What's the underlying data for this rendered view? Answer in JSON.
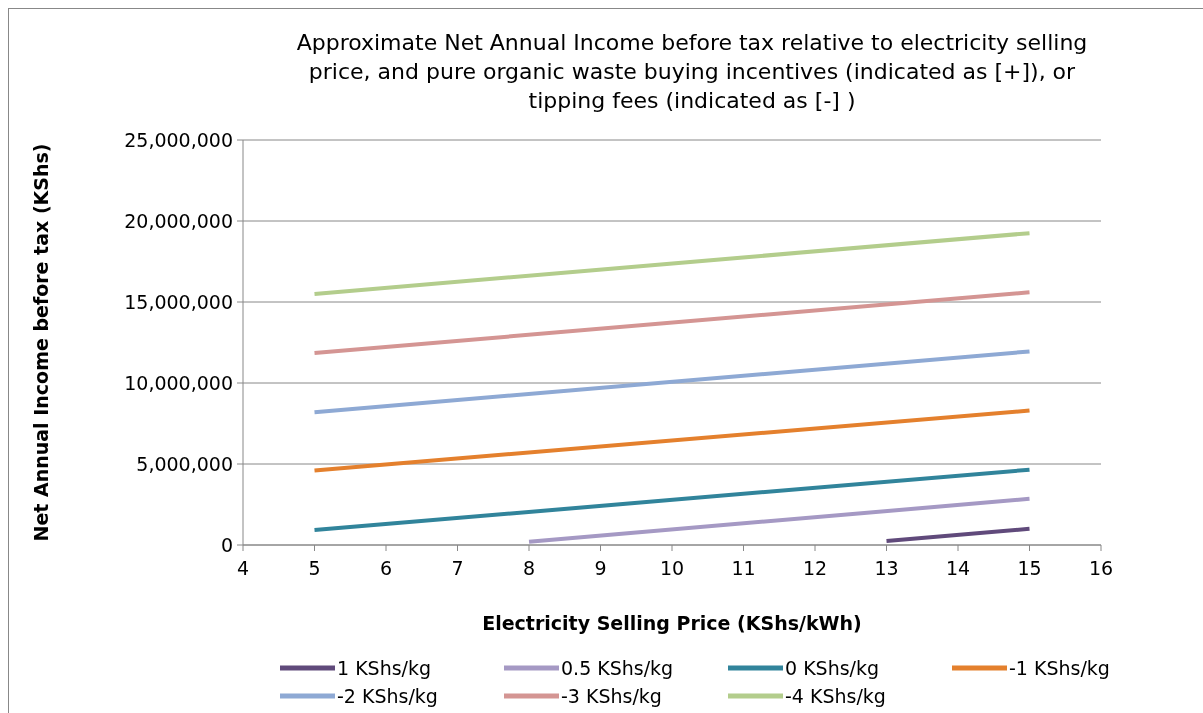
{
  "chart_data": {
    "type": "line",
    "title": "Approximate Net Annual Income before tax relative to electricity selling price, and pure organic waste buying incentives (indicated as [+]), or tipping fees (indicated as [-] )",
    "xlabel": "Electricity Selling Price (KShs/kWh)",
    "ylabel": "Net Annual Income before tax (KShs)",
    "xlim": [
      4,
      16
    ],
    "xticks": [
      4,
      5,
      6,
      7,
      8,
      9,
      10,
      11,
      12,
      13,
      14,
      15,
      16
    ],
    "ylim": [
      0,
      25000000
    ],
    "yticks": [
      {
        "value": 0,
        "label": "0"
      },
      {
        "value": 5000000,
        "label": "5,000,000"
      },
      {
        "value": 10000000,
        "label": "10,000,000"
      },
      {
        "value": 15000000,
        "label": "15,000,000"
      },
      {
        "value": 20000000,
        "label": "20,000,000"
      },
      {
        "value": 25000000,
        "label": "25,000,000"
      }
    ],
    "grid": "y",
    "legend": "bottom",
    "marker": "none",
    "line_style": "solid",
    "series": [
      {
        "name": "1 KShs/kg",
        "color": "#604a7b",
        "x": [
          13,
          15
        ],
        "values": [
          250000,
          1000000
        ]
      },
      {
        "name": "0.5 KShs/kg",
        "color": "#a599c4",
        "x": [
          8,
          15
        ],
        "values": [
          200000,
          2850000
        ]
      },
      {
        "name": "0 KShs/kg",
        "color": "#31849b",
        "x": [
          5,
          15
        ],
        "values": [
          920000,
          4650000
        ]
      },
      {
        "name": "-1 KShs/kg",
        "color": "#e4802d",
        "x": [
          5,
          15
        ],
        "values": [
          4600000,
          8300000
        ]
      },
      {
        "name": "-2 KShs/kg",
        "color": "#8ea9d4",
        "x": [
          5,
          15
        ],
        "values": [
          8200000,
          11950000
        ]
      },
      {
        "name": "-3 KShs/kg",
        "color": "#d49593",
        "x": [
          5,
          15
        ],
        "values": [
          11850000,
          15600000
        ]
      },
      {
        "name": "-4 KShs/kg",
        "color": "#b3cd8c",
        "x": [
          5,
          15
        ],
        "values": [
          15500000,
          19250000
        ]
      }
    ]
  }
}
